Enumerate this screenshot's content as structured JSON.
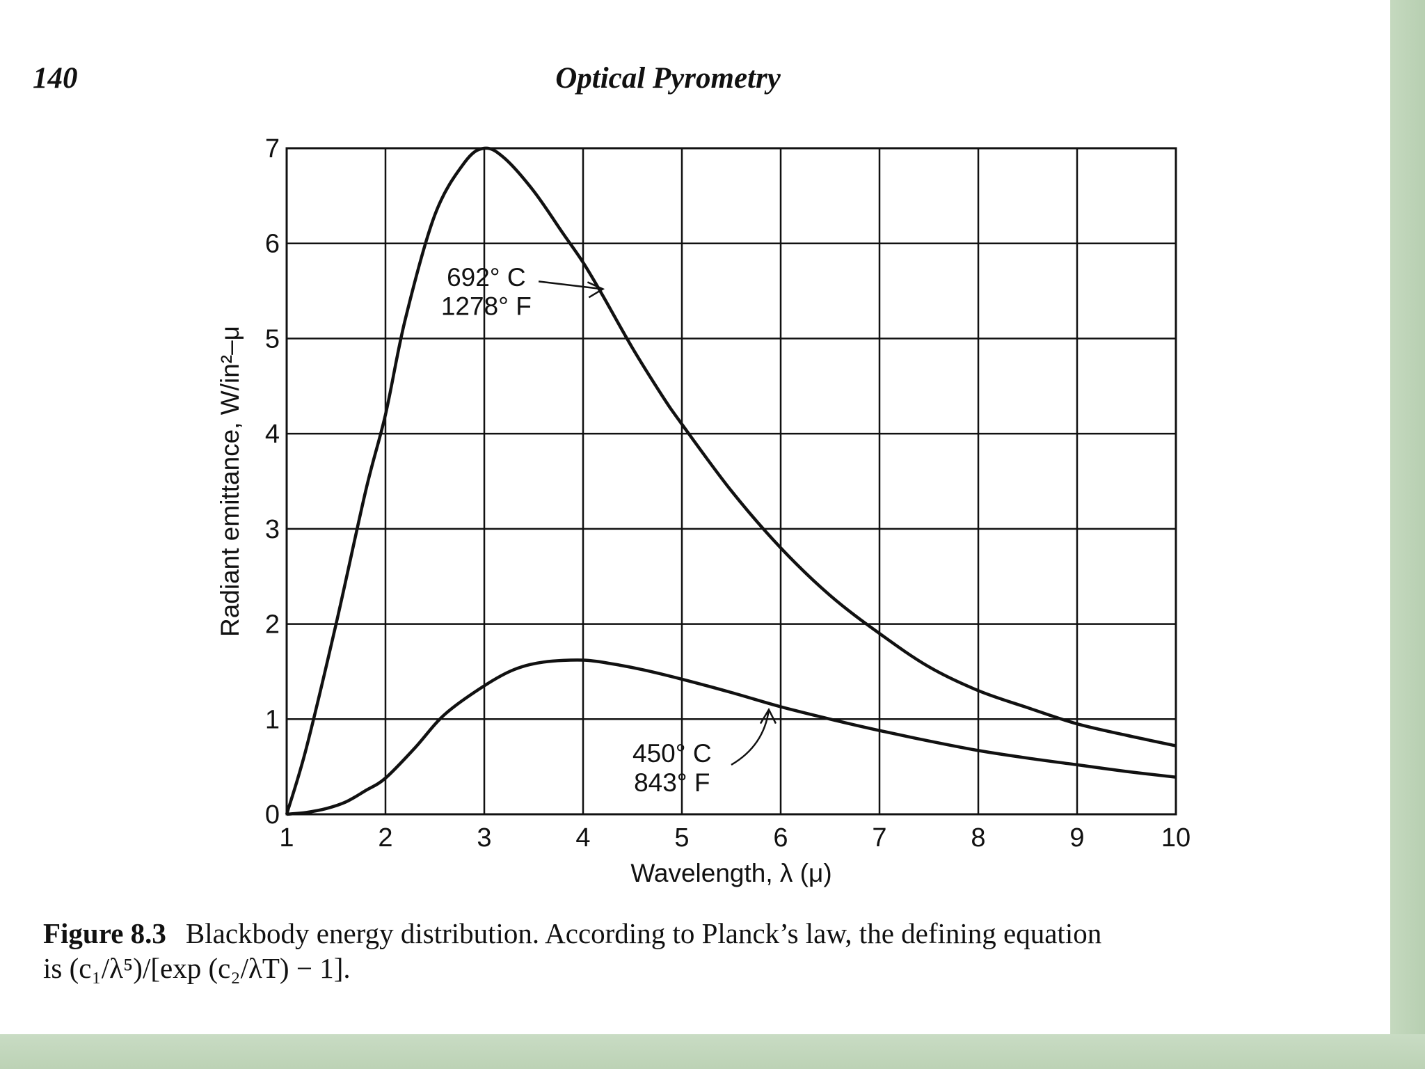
{
  "header": {
    "page_number": "140",
    "running_head": "Optical  Pyrometry"
  },
  "chart_data": {
    "type": "line",
    "title": "",
    "xlabel": "Wavelength, λ (μ)",
    "ylabel": "Radiant emittance, W/in²–μ",
    "xlim": [
      1,
      10
    ],
    "ylim": [
      0,
      7
    ],
    "grid": true,
    "x_ticks": [
      "1",
      "2",
      "3",
      "4",
      "5",
      "6",
      "7",
      "8",
      "9",
      "10"
    ],
    "y_ticks": [
      "0",
      "1",
      "2",
      "3",
      "4",
      "5",
      "6",
      "7"
    ],
    "series": [
      {
        "name": "692°C",
        "label_lines": [
          "692° C",
          "1278° F"
        ],
        "x": [
          1.0,
          1.2,
          1.5,
          1.8,
          2.0,
          2.2,
          2.5,
          2.8,
          3.0,
          3.2,
          3.5,
          3.8,
          4.0,
          4.2,
          4.5,
          4.8,
          5.0,
          5.5,
          6.0,
          6.5,
          7.0,
          7.5,
          8.0,
          8.5,
          9.0,
          9.5,
          10.0
        ],
        "values": [
          0.0,
          0.7,
          2.0,
          3.4,
          4.2,
          5.2,
          6.3,
          6.85,
          7.0,
          6.9,
          6.55,
          6.1,
          5.8,
          5.45,
          4.9,
          4.4,
          4.1,
          3.4,
          2.8,
          2.3,
          1.9,
          1.55,
          1.3,
          1.12,
          0.95,
          0.83,
          0.72
        ]
      },
      {
        "name": "450°C",
        "label_lines": [
          "450° C",
          "843° F"
        ],
        "x": [
          1.0,
          1.2,
          1.4,
          1.6,
          1.8,
          2.0,
          2.3,
          2.6,
          3.0,
          3.3,
          3.6,
          4.0,
          4.3,
          4.6,
          5.0,
          5.5,
          6.0,
          6.5,
          7.0,
          7.5,
          8.0,
          8.5,
          9.0,
          9.5,
          10.0
        ],
        "values": [
          0.0,
          0.02,
          0.06,
          0.13,
          0.25,
          0.38,
          0.7,
          1.05,
          1.35,
          1.52,
          1.6,
          1.62,
          1.58,
          1.52,
          1.42,
          1.28,
          1.13,
          1.0,
          0.88,
          0.77,
          0.67,
          0.59,
          0.52,
          0.45,
          0.39
        ]
      }
    ]
  },
  "caption": {
    "label": "Figure 8.3",
    "line1": "Blackbody energy distribution. According to Planck’s law, the defining equation",
    "line2": "is (c₁/λ⁵)/[exp (c₂/λT) − 1]."
  }
}
